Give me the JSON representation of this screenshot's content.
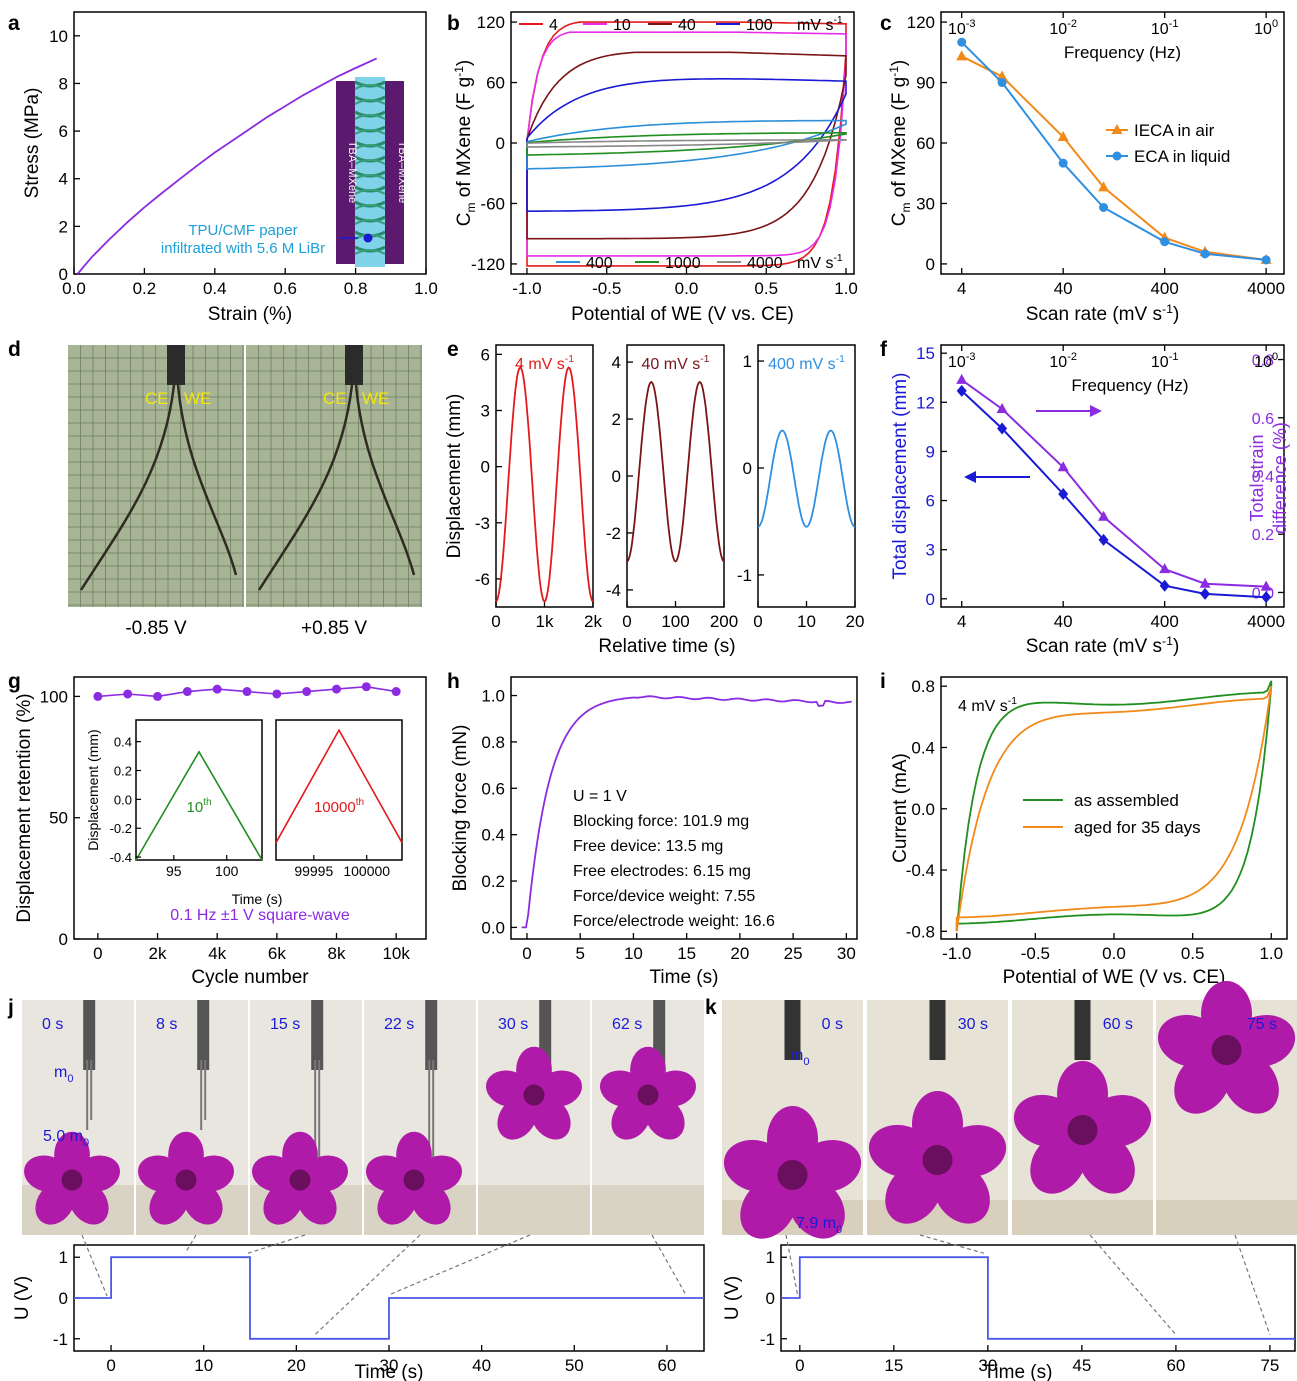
{
  "chart_data": [
    {
      "panel": "a",
      "type": "line",
      "xlabel": "Strain (%)",
      "ylabel": "Stress (MPa)",
      "xlim": [
        0,
        1.0
      ],
      "ylim": [
        0,
        11
      ],
      "xticks": [
        "0.0",
        "0.2",
        "0.4",
        "0.6",
        "0.8",
        "1.0"
      ],
      "yticks": [
        "0",
        "2",
        "4",
        "6",
        "8",
        "10"
      ],
      "color": "#8b2be2",
      "series": [
        {
          "x": [
            0.01,
            0.05,
            0.1,
            0.15,
            0.2,
            0.25,
            0.3,
            0.35,
            0.4,
            0.45,
            0.5,
            0.55,
            0.6,
            0.65,
            0.7,
            0.75,
            0.8,
            0.86
          ],
          "y": [
            0,
            0.7,
            1.45,
            2.15,
            2.8,
            3.4,
            3.98,
            4.55,
            5.1,
            5.6,
            6.1,
            6.6,
            7.05,
            7.5,
            7.9,
            8.3,
            8.65,
            9.05
          ]
        }
      ],
      "inset_labels": {
        "left": "TBA–MXene",
        "right": "TBA–MXene"
      },
      "annotation": [
        "TPU/CMF paper",
        "infiltrated with 5.6 M LiBr"
      ]
    },
    {
      "panel": "b",
      "type": "line",
      "xlabel": "Potential of WE (V vs. CE)",
      "ylabel": "C_m of MXene (F g^-1)",
      "xlim": [
        -1.1,
        1.05
      ],
      "ylim": [
        -130,
        130
      ],
      "xticks": [
        "-1.0",
        "-0.5",
        "0.0",
        "0.5",
        "1.0"
      ],
      "yticks": [
        "-120",
        "-60",
        "0",
        "60",
        "120"
      ],
      "legend_top": [
        "4",
        "10",
        "40",
        "100",
        "mV s-1"
      ],
      "legend_bottom": [
        "400",
        "1000",
        "4000",
        "mV s-1"
      ],
      "series": [
        {
          "name": "4",
          "color": "#e31a1c",
          "shape": [
            120,
            100,
            -122,
            12
          ]
        },
        {
          "name": "10",
          "color": "#e82ce8",
          "shape": [
            110,
            90,
            -112,
            14
          ]
        },
        {
          "name": "40",
          "color": "#7b1515",
          "shape": [
            90,
            50,
            -95,
            5
          ]
        },
        {
          "name": "100",
          "color": "#1a1ad6",
          "shape": [
            65,
            25,
            -68,
            3
          ]
        },
        {
          "name": "400",
          "color": "#2b8fd9",
          "shape": [
            25,
            8,
            -28,
            1.5
          ]
        },
        {
          "name": "1000",
          "color": "#1f8f1f",
          "shape": [
            12,
            4,
            -14,
            1.2
          ]
        },
        {
          "name": "4000",
          "color": "#888888",
          "shape": [
            4,
            1.5,
            -5,
            1
          ]
        }
      ]
    },
    {
      "panel": "c",
      "type": "line",
      "xlabel": "Scan rate (mV s-1)",
      "ylabel": "C_m of MXene (F g^-1)",
      "x2label": "Frequency (Hz)",
      "xscale": "log",
      "xlim": [
        2.5,
        6000
      ],
      "ylim": [
        -5,
        125
      ],
      "xticks": [
        "4",
        "40",
        "400",
        "4000"
      ],
      "x2ticks": [
        "10-3",
        "10-2",
        "10-1",
        "100"
      ],
      "yticks": [
        "0",
        "30",
        "60",
        "90",
        "120"
      ],
      "series": [
        {
          "name": "IECA in air",
          "color": "#f28a1a",
          "marker": "triangle",
          "x": [
            4,
            10,
            40,
            100,
            400,
            1000,
            4000
          ],
          "y": [
            103,
            93,
            63,
            38,
            13,
            6,
            2
          ]
        },
        {
          "name": "ECA in liquid",
          "color": "#2f8fe0",
          "marker": "circle",
          "x": [
            4,
            10,
            40,
            100,
            400,
            1000,
            4000
          ],
          "y": [
            110,
            90,
            50,
            28,
            11,
            5,
            2
          ]
        }
      ]
    },
    {
      "panel": "d",
      "type": "photo",
      "labels": [
        "CE",
        "WE",
        "CE",
        "WE"
      ],
      "captions": [
        "-0.85 V",
        "+0.85 V"
      ]
    },
    {
      "panel": "e",
      "type": "line",
      "ylabel": "Displacement (mm)",
      "xlabel": "Relative time (s)",
      "subplots": [
        {
          "label": "4 mV s-1",
          "color": "#e31a1c",
          "xlim": [
            0,
            2000
          ],
          "ylim": [
            -7.5,
            6.5
          ],
          "xticks": [
            "0",
            "1k",
            "2k"
          ],
          "yticks": [
            "-6",
            "-3",
            "0",
            "3",
            "6"
          ],
          "min": -7.2,
          "max": 5.3
        },
        {
          "label": "40 mV s-1",
          "color": "#7b1515",
          "xlim": [
            0,
            200
          ],
          "ylim": [
            -4.6,
            4.6
          ],
          "xticks": [
            "0",
            "100",
            "200"
          ],
          "yticks": [
            "-4",
            "-2",
            "0",
            "2",
            "4"
          ],
          "min": -3.0,
          "max": 3.3
        },
        {
          "label": "400 mV s-1",
          "color": "#2f8fe0",
          "xlim": [
            0,
            20
          ],
          "ylim": [
            -1.3,
            1.15
          ],
          "xticks": [
            "0",
            "10",
            "20"
          ],
          "yticks": [
            "-1",
            "0",
            "1"
          ],
          "min": -0.55,
          "max": 0.35
        }
      ]
    },
    {
      "panel": "f",
      "type": "line",
      "xlabel": "Scan rate (mV s-1)",
      "x2label": "Frequency (Hz)",
      "ylabel": "Total displacement (mm)",
      "y2label": [
        "Total strain",
        "difference (%)"
      ],
      "xscale": "log",
      "xlim": [
        2.5,
        6000
      ],
      "ylim": [
        -0.5,
        15.5
      ],
      "y2lim": [
        -0.05,
        0.85
      ],
      "xticks": [
        "4",
        "40",
        "400",
        "4000"
      ],
      "x2ticks": [
        "10-3",
        "10-2",
        "10-1",
        "100"
      ],
      "yticks": [
        "0",
        "3",
        "6",
        "9",
        "12",
        "15"
      ],
      "y2ticks": [
        "0.0",
        "0.2",
        "0.4",
        "0.6",
        "0.8"
      ],
      "series": [
        {
          "name": "Total displacement",
          "color": "#1a1ad6",
          "marker": "diamond",
          "axis": "left",
          "x": [
            4,
            10,
            40,
            100,
            400,
            1000,
            4000
          ],
          "y": [
            12.7,
            10.4,
            6.4,
            3.6,
            0.8,
            0.3,
            0.1
          ]
        },
        {
          "name": "Total strain difference",
          "color": "#8b2be2",
          "marker": "triangle",
          "axis": "right",
          "x": [
            4,
            10,
            40,
            100,
            400,
            1000,
            4000
          ],
          "y": [
            0.73,
            0.63,
            0.43,
            0.26,
            0.08,
            0.03,
            0.02
          ]
        }
      ]
    },
    {
      "panel": "g",
      "type": "scatter",
      "xlabel": "Cycle number",
      "ylabel": "Displacement retention (%)",
      "xlim": [
        -800,
        11000
      ],
      "ylim": [
        0,
        108
      ],
      "xticks": [
        "0",
        "2k",
        "4k",
        "6k",
        "8k",
        "10k"
      ],
      "yticks": [
        "0",
        "50",
        "100"
      ],
      "color": "#8b2be2",
      "x": [
        0,
        1000,
        2000,
        3000,
        4000,
        5000,
        6000,
        7000,
        8000,
        9000,
        10000
      ],
      "y": [
        100,
        101,
        100,
        102,
        103,
        102,
        101,
        102,
        103,
        104,
        102
      ],
      "footnote": "0.1 Hz ±1 V square-wave",
      "inset": {
        "ylabel": "Displacement (mm)",
        "xlabel": "Time (s)",
        "yticks": [
          "-0.4",
          "-0.3",
          "-0.2",
          "-0.1",
          "0.0",
          "0.1",
          "0.2",
          "0.3",
          "0.4"
        ],
        "left": {
          "label": "10th",
          "color": "#1f8f1f",
          "xticks": [
            "95",
            "100"
          ]
        },
        "right": {
          "label": "10000th",
          "color": "#e31a1c",
          "xticks": [
            "99995",
            "100000"
          ]
        }
      }
    },
    {
      "panel": "h",
      "type": "line",
      "xlabel": "Time (s)",
      "ylabel": "Blocking force (mN)",
      "xlim": [
        -1.5,
        31
      ],
      "ylim": [
        -0.05,
        1.08
      ],
      "xticks": [
        "0",
        "5",
        "10",
        "15",
        "20",
        "25",
        "30"
      ],
      "yticks": [
        "0.0",
        "0.2",
        "0.4",
        "0.6",
        "0.8",
        "1.0"
      ],
      "color": "#8b2be2",
      "notes": [
        "U = 1 V",
        "Blocking force: 101.9 mg",
        "Free device: 13.5 mg",
        "Free electrodes: 6.15 mg",
        "Force/device weight: 7.55",
        "Force/electrode weight: 16.6"
      ]
    },
    {
      "panel": "i",
      "type": "line",
      "xlabel": "Potential of WE (V vs. CE)",
      "ylabel": "Current (mA)",
      "xlim": [
        -1.1,
        1.1
      ],
      "ylim": [
        -0.85,
        0.86
      ],
      "xticks": [
        "-1.0",
        "-0.5",
        "0.0",
        "0.5",
        "1.0"
      ],
      "yticks": [
        "-0.8",
        "-0.4",
        "0.0",
        "0.4",
        "0.8"
      ],
      "label": "4 mV s-1",
      "series": [
        {
          "name": "as assembled",
          "color": "#1f8f1f"
        },
        {
          "name": "aged for 35 days",
          "color": "#f28a1a"
        }
      ]
    },
    {
      "panel": "j",
      "type": "line",
      "xlabel": "Time (s)",
      "ylabel": "U (V)",
      "xlim": [
        -4,
        64
      ],
      "ylim": [
        -1.3,
        1.3
      ],
      "xticks": [
        "0",
        "10",
        "20",
        "30",
        "40",
        "50",
        "60"
      ],
      "yticks": [
        "-1",
        "0",
        "1"
      ],
      "color": "#4a5ae8",
      "x": [
        -4,
        0,
        0,
        15,
        15,
        30,
        30,
        64
      ],
      "y": [
        0,
        0,
        1,
        1,
        -1,
        -1,
        0,
        0
      ],
      "photo_times": [
        "0 s",
        "8 s",
        "15 s",
        "22 s",
        "30 s",
        "62 s"
      ],
      "photo_labels": [
        "m0",
        "5.0 m0"
      ]
    },
    {
      "panel": "k",
      "type": "line",
      "xlabel": "Time (s)",
      "ylabel": "U (V)",
      "xlim": [
        -3,
        79
      ],
      "ylim": [
        -1.3,
        1.3
      ],
      "xticks": [
        "0",
        "15",
        "30",
        "45",
        "60",
        "75"
      ],
      "yticks": [
        "-1",
        "0",
        "1"
      ],
      "color": "#4a5ae8",
      "x": [
        -3,
        0,
        0,
        30,
        30,
        79
      ],
      "y": [
        0,
        0,
        1,
        1,
        -1,
        -1
      ],
      "photo_times": [
        "0 s",
        "30 s",
        "60 s",
        "75 s"
      ],
      "photo_labels": [
        "m0",
        "7.9 m0"
      ]
    }
  ]
}
